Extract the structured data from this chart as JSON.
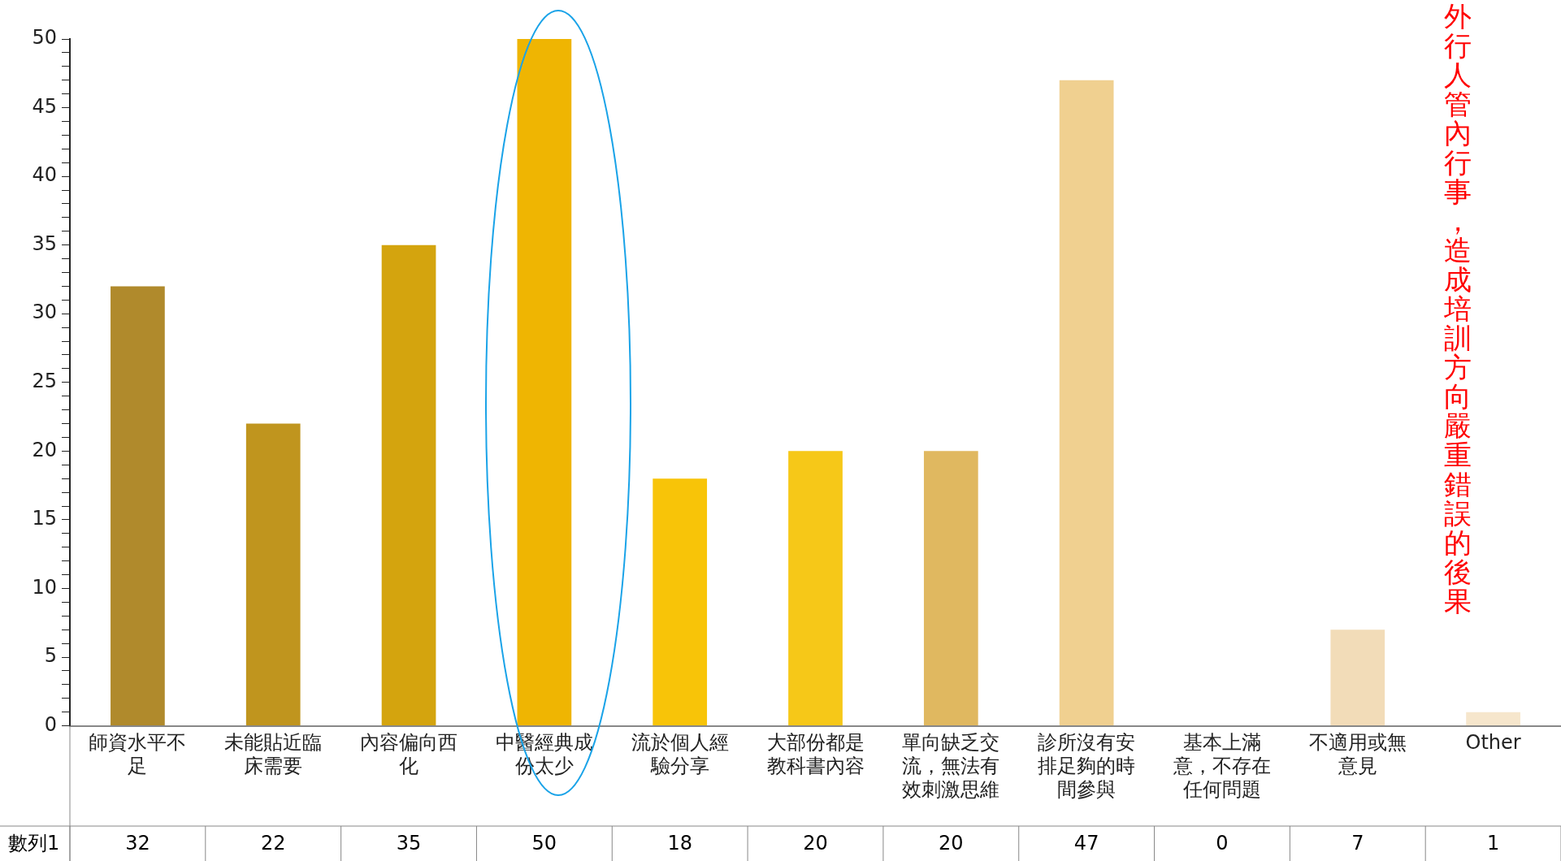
{
  "chart_data": {
    "type": "bar",
    "categories": [
      "師資水平不足",
      "未能貼近臨床需要",
      "內容偏向西化",
      "中醫經典成份太少",
      "流於個人經驗分享",
      "大部份都是教科書內容",
      "單向缺乏交流，無法有效刺激思維",
      "診所沒有安排足夠的時間參與",
      "基本上滿意，不存在任何問題",
      "不適用或無意見",
      "Other"
    ],
    "series": [
      {
        "name": "數列1",
        "colors": [
          "#b08a2c",
          "#c0951e",
          "#d4a40e",
          "#efb502",
          "#f8c408",
          "#f6c818",
          "#e0b860",
          "#f0d090",
          "#f0d8a8",
          "#f2dcb8",
          "#f6e6cc"
        ],
        "values": [
          32,
          22,
          35,
          50,
          18,
          20,
          20,
          47,
          0,
          7,
          1
        ]
      }
    ],
    "ylim": [
      0,
      50
    ],
    "yticks": [
      0,
      {
        "value": 1,
        "label": null
      },
      {
        "value": 2,
        "label": null
      },
      {
        "value": 3,
        "label": null
      },
      {
        "value": 4,
        "label": null
      },
      5,
      {
        "value": 6,
        "label": null
      },
      {
        "value": 7,
        "label": null
      },
      {
        "value": 8,
        "label": null
      },
      {
        "value": 9,
        "label": null
      },
      10,
      {
        "value": 11,
        "label": null
      },
      {
        "value": 12,
        "label": null
      },
      {
        "value": 13,
        "label": null
      },
      {
        "value": 14,
        "label": null
      },
      15,
      {
        "value": 16,
        "label": null
      },
      {
        "value": 17,
        "label": null
      },
      {
        "value": 18,
        "label": null
      },
      {
        "value": 19,
        "label": null
      },
      20,
      {
        "value": 21,
        "label": null
      },
      {
        "value": 22,
        "label": null
      },
      {
        "value": 23,
        "label": null
      },
      {
        "value": 24,
        "label": null
      },
      25,
      {
        "value": 26,
        "label": null
      },
      {
        "value": 27,
        "label": null
      },
      {
        "value": 28,
        "label": null
      },
      {
        "value": 29,
        "label": null
      },
      30,
      {
        "value": 31,
        "label": null
      },
      {
        "value": 32,
        "label": null
      },
      {
        "value": 33,
        "label": null
      },
      {
        "value": 34,
        "label": null
      },
      35,
      {
        "value": 36,
        "label": null
      },
      {
        "value": 37,
        "label": null
      },
      {
        "value": 38,
        "label": null
      },
      {
        "value": 39,
        "label": null
      },
      40,
      {
        "value": 41,
        "label": null
      },
      {
        "value": 42,
        "label": null
      },
      {
        "value": 43,
        "label": null
      },
      {
        "value": 44,
        "label": null
      },
      45,
      {
        "value": 46,
        "label": null
      },
      {
        "value": 47,
        "label": null
      },
      {
        "value": 48,
        "label": null
      },
      {
        "value": 49,
        "label": null
      },
      50
    ],
    "grid": false,
    "legend": false,
    "data_labels": true,
    "annotations": [
      "外行人管內行事，造成培訓方向嚴重錯誤的後果"
    ]
  }
}
